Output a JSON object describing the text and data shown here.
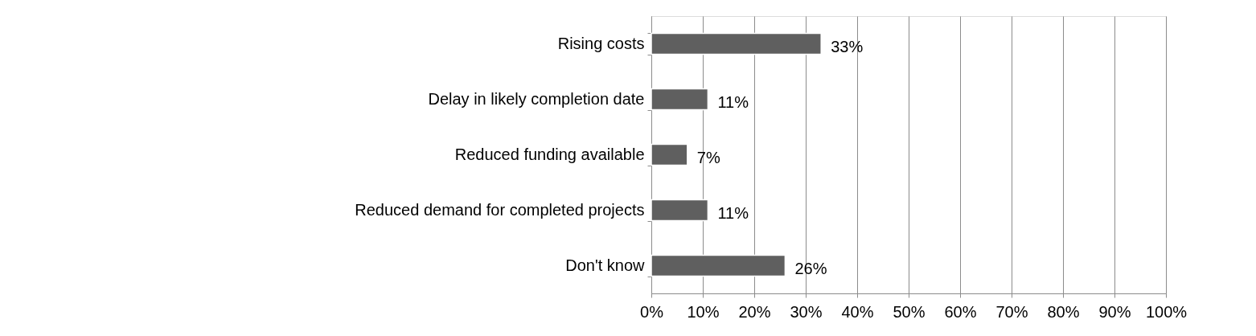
{
  "chart_data": {
    "type": "bar",
    "orientation": "horizontal",
    "categories": [
      "Rising costs",
      "Delay in likely completion date",
      "Reduced funding available",
      "Reduced demand for completed projects",
      "Don't know"
    ],
    "values": [
      33,
      11,
      7,
      11,
      26
    ],
    "value_labels": [
      "33%",
      "11%",
      "7%",
      "11%",
      "26%"
    ],
    "color": "#5f5f5f",
    "xlim": [
      0,
      100
    ],
    "xticks": [
      {
        "value": 0,
        "label": "0%"
      },
      {
        "value": 10,
        "label": "10%"
      },
      {
        "value": 20,
        "label": "20%"
      },
      {
        "value": 30,
        "label": "30%"
      },
      {
        "value": 40,
        "label": "40%"
      },
      {
        "value": 50,
        "label": "50%"
      },
      {
        "value": 60,
        "label": "60%"
      },
      {
        "value": 70,
        "label": "70%"
      },
      {
        "value": 80,
        "label": "80%"
      },
      {
        "value": 90,
        "label": "90%"
      },
      {
        "value": 100,
        "label": "100%"
      }
    ],
    "grid": "x"
  }
}
